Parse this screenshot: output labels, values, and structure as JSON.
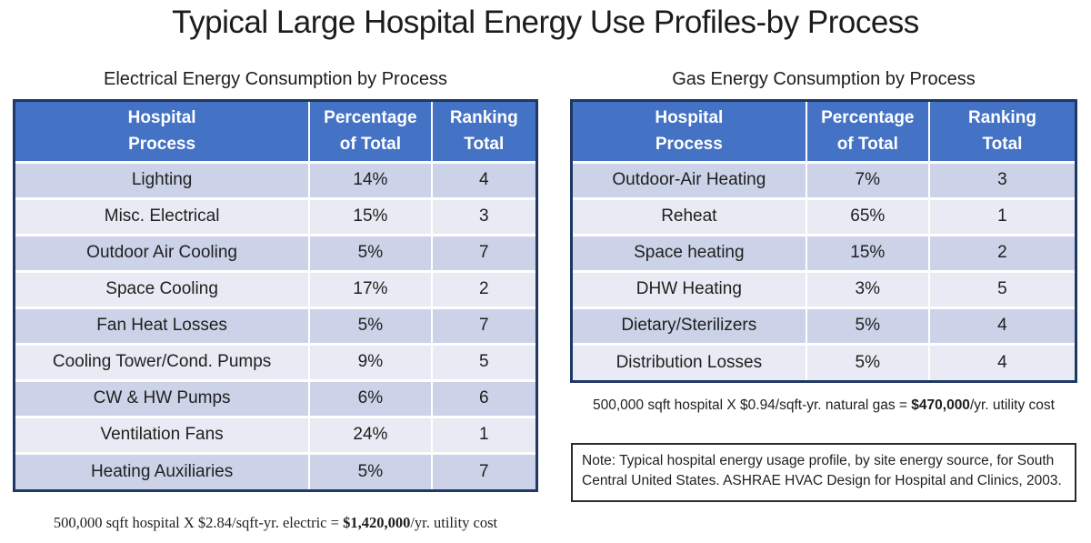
{
  "title": "Typical Large Hospital Energy Use Profiles-by Process",
  "colors": {
    "header_bg": "#4472c4",
    "header_text": "#ffffff",
    "row_band_dark": "#ccd3e8",
    "row_band_light": "#e9ebf4",
    "table_border": "#1f3864",
    "note_border": "#2b2b2b"
  },
  "electrical": {
    "caption": "Electrical Energy Consumption by Process",
    "columns": [
      [
        "Hospital",
        "Process"
      ],
      [
        "Percentage",
        "of Total"
      ],
      [
        "Ranking",
        "Total"
      ]
    ],
    "rows": [
      [
        "Lighting",
        "14%",
        "4"
      ],
      [
        "Misc. Electrical",
        "15%",
        "3"
      ],
      [
        "Outdoor Air Cooling",
        "5%",
        "7"
      ],
      [
        "Space Cooling",
        "17%",
        "2"
      ],
      [
        "Fan Heat Losses",
        "5%",
        "7"
      ],
      [
        "Cooling Tower/Cond. Pumps",
        "9%",
        "5"
      ],
      [
        "CW & HW Pumps",
        "6%",
        "6"
      ],
      [
        "Ventilation Fans",
        "24%",
        "1"
      ],
      [
        "Heating Auxiliaries",
        "5%",
        "7"
      ]
    ],
    "footnote": {
      "prefix": "500,000 sqft hospital X $2.84/sqft-yr. electric = ",
      "bold": "$1,420,000",
      "suffix": "/yr. utility cost"
    }
  },
  "gas": {
    "caption": "Gas Energy Consumption by Process",
    "columns": [
      [
        "Hospital",
        "Process"
      ],
      [
        "Percentage",
        "of Total"
      ],
      [
        "Ranking",
        "Total"
      ]
    ],
    "rows": [
      [
        "Outdoor-Air Heating",
        "7%",
        "3"
      ],
      [
        "Reheat",
        "65%",
        "1"
      ],
      [
        "Space heating",
        "15%",
        "2"
      ],
      [
        "DHW Heating",
        "3%",
        "5"
      ],
      [
        "Dietary/Sterilizers",
        "5%",
        "4"
      ],
      [
        "Distribution Losses",
        "5%",
        "4"
      ]
    ],
    "footnote": {
      "prefix": "500,000 sqft hospital X $0.94/sqft-yr. natural gas = ",
      "bold": "$470,000",
      "suffix": "/yr. utility cost"
    }
  },
  "note": "Note: Typical hospital energy usage profile, by site energy source, for South Central United States. ASHRAE HVAC Design for Hospital and Clinics, 2003."
}
